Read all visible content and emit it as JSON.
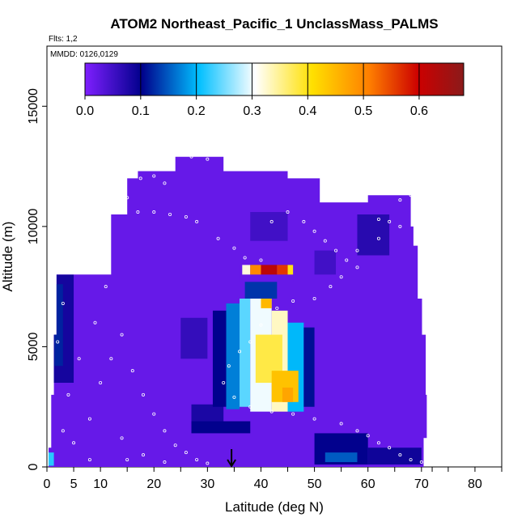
{
  "chart_data": {
    "type": "heatmap",
    "title": "ATOM2 Northeast_Pacific_1 UnclassMass_PALMS",
    "subtitle": "Flts: 1,2",
    "annotation": "MMDD: 0126,0129",
    "xlabel": "Latitude (deg N)",
    "ylabel": "Altitude (m)",
    "xlim": [
      0,
      85
    ],
    "ylim": [
      0,
      17500
    ],
    "x_ticks": [
      0,
      5,
      10,
      20,
      30,
      40,
      50,
      60,
      70,
      80
    ],
    "x_minor_ticks": [
      15,
      25,
      35,
      45,
      55,
      65,
      72,
      75,
      85
    ],
    "y_ticks": [
      0,
      5000,
      10000,
      15000
    ],
    "colorbar": {
      "min": 0.0,
      "max": 0.68,
      "ticks": [
        "0.0",
        "0.1",
        "0.2",
        "0.3",
        "0.4",
        "0.5",
        "0.6"
      ],
      "tick_values": [
        0.0,
        0.1,
        0.2,
        0.3,
        0.4,
        0.5,
        0.6
      ],
      "colors": [
        "#7f1fff",
        "#00008b",
        "#00bfff",
        "#ffffff",
        "#ffe000",
        "#ff7f00",
        "#cc0000",
        "#8b1a1a"
      ],
      "color_positions": [
        0.0,
        0.15,
        0.3,
        0.45,
        0.6,
        0.75,
        0.88,
        1.0
      ]
    },
    "background_value": 0.02,
    "envelope": [
      [
        0.3,
        0
      ],
      [
        0.3,
        800
      ],
      [
        0.8,
        800
      ],
      [
        0.8,
        3000
      ],
      [
        1.3,
        3000
      ],
      [
        1.3,
        5500
      ],
      [
        1.8,
        5500
      ],
      [
        1.8,
        8000
      ],
      [
        12,
        8000
      ],
      [
        12,
        9200
      ],
      [
        12,
        10500
      ],
      [
        15,
        10500
      ],
      [
        15,
        12000
      ],
      [
        17,
        12000
      ],
      [
        17,
        12300
      ],
      [
        24,
        12300
      ],
      [
        24,
        12900
      ],
      [
        33,
        12900
      ],
      [
        33,
        12300
      ],
      [
        45,
        12300
      ],
      [
        45,
        12000
      ],
      [
        51,
        12000
      ],
      [
        51,
        11000
      ],
      [
        60,
        11000
      ],
      [
        60,
        11300
      ],
      [
        68,
        11300
      ],
      [
        68,
        10000
      ],
      [
        68.5,
        10000
      ],
      [
        68.5,
        9200
      ],
      [
        69.3,
        9200
      ],
      [
        69.3,
        7000
      ],
      [
        70.1,
        7000
      ],
      [
        70.1,
        5500
      ],
      [
        70.8,
        5500
      ],
      [
        70.8,
        3000
      ],
      [
        71.0,
        3000
      ],
      [
        71.0,
        1200
      ],
      [
        70.4,
        1200
      ],
      [
        70.4,
        0
      ]
    ],
    "cells": [
      {
        "x": [
          1.2,
          5.0
        ],
        "y": [
          3500,
          8000
        ],
        "v": 0.085
      },
      {
        "x": [
          1.4,
          3.0
        ],
        "y": [
          4200,
          7600
        ],
        "v": 0.12
      },
      {
        "x": [
          0.3,
          1.3
        ],
        "y": [
          50,
          600
        ],
        "v": 0.22
      },
      {
        "x": [
          25,
          30
        ],
        "y": [
          4500,
          6200
        ],
        "v": 0.06
      },
      {
        "x": [
          27,
          33
        ],
        "y": [
          1800,
          2600
        ],
        "v": 0.08
      },
      {
        "x": [
          27,
          38
        ],
        "y": [
          1400,
          1900
        ],
        "v": 0.1
      },
      {
        "x": [
          31,
          33.5
        ],
        "y": [
          2500,
          6500
        ],
        "v": 0.1
      },
      {
        "x": [
          33.5,
          36
        ],
        "y": [
          2400,
          6800
        ],
        "v": 0.17
      },
      {
        "x": [
          36,
          38
        ],
        "y": [
          2500,
          7000
        ],
        "v": 0.24
      },
      {
        "x": [
          38,
          42
        ],
        "y": [
          2300,
          7200
        ],
        "v": 0.3
      },
      {
        "x": [
          42,
          45
        ],
        "y": [
          2300,
          6500
        ],
        "v": 0.33
      },
      {
        "x": [
          45,
          48
        ],
        "y": [
          2300,
          6000
        ],
        "v": 0.2
      },
      {
        "x": [
          48,
          50
        ],
        "y": [
          2500,
          5800
        ],
        "v": 0.11
      },
      {
        "x": [
          39,
          44
        ],
        "y": [
          3500,
          5500
        ],
        "v": 0.38
      },
      {
        "x": [
          42,
          47
        ],
        "y": [
          2700,
          4000
        ],
        "v": 0.44
      },
      {
        "x": [
          44,
          46
        ],
        "y": [
          2700,
          3300
        ],
        "v": 0.47
      },
      {
        "x": [
          40,
          42
        ],
        "y": [
          6600,
          7000
        ],
        "v": 0.45
      },
      {
        "x": [
          37,
          43
        ],
        "y": [
          7000,
          7700
        ],
        "v": 0.13
      },
      {
        "x": [
          36,
          46
        ],
        "y": [
          7700,
          8400
        ],
        "v": 0.02
      },
      {
        "x": [
          36.5,
          38
        ],
        "y": [
          8000,
          8400
        ],
        "v": 0.32
      },
      {
        "x": [
          38,
          40
        ],
        "y": [
          8000,
          8400
        ],
        "v": 0.5
      },
      {
        "x": [
          40,
          43
        ],
        "y": [
          8000,
          8400
        ],
        "v": 0.62
      },
      {
        "x": [
          43,
          45
        ],
        "y": [
          8000,
          8400
        ],
        "v": 0.56
      },
      {
        "x": [
          45,
          46
        ],
        "y": [
          8000,
          8400
        ],
        "v": 0.4
      },
      {
        "x": [
          50,
          60
        ],
        "y": [
          100,
          1400
        ],
        "v": 0.1
      },
      {
        "x": [
          52,
          58
        ],
        "y": [
          200,
          600
        ],
        "v": 0.15
      },
      {
        "x": [
          60,
          70
        ],
        "y": [
          100,
          800
        ],
        "v": 0.09
      },
      {
        "x": [
          58,
          64
        ],
        "y": [
          8800,
          10500
        ],
        "v": 0.07
      },
      {
        "x": [
          38,
          45
        ],
        "y": [
          9400,
          10600
        ],
        "v": 0.05
      },
      {
        "x": [
          50,
          54
        ],
        "y": [
          8000,
          9000
        ],
        "v": 0.05
      }
    ],
    "sample_track": [
      [
        17.5,
        12000
      ],
      [
        20,
        12100
      ],
      [
        22,
        11800
      ],
      [
        27,
        12900
      ],
      [
        30,
        12800
      ],
      [
        13,
        11300
      ],
      [
        15,
        11200
      ],
      [
        17,
        10600
      ],
      [
        20,
        10600
      ],
      [
        23,
        10500
      ],
      [
        26,
        10400
      ],
      [
        28,
        10200
      ],
      [
        32,
        9500
      ],
      [
        35,
        9100
      ],
      [
        37,
        8700
      ],
      [
        40,
        8600
      ],
      [
        42,
        10200
      ],
      [
        45,
        10600
      ],
      [
        48,
        10200
      ],
      [
        50,
        9800
      ],
      [
        52,
        9400
      ],
      [
        54,
        9000
      ],
      [
        56,
        8600
      ],
      [
        58,
        8300
      ],
      [
        62,
        10300
      ],
      [
        64,
        10200
      ],
      [
        66,
        11100
      ],
      [
        68,
        11300
      ],
      [
        66,
        10000
      ],
      [
        62,
        9500
      ],
      [
        58,
        9000
      ],
      [
        55,
        7900
      ],
      [
        53,
        7500
      ],
      [
        50,
        7000
      ],
      [
        46,
        6900
      ],
      [
        43,
        6600
      ],
      [
        40,
        5900
      ],
      [
        38,
        5200
      ],
      [
        36,
        4800
      ],
      [
        34,
        4200
      ],
      [
        33,
        3500
      ],
      [
        35,
        2900
      ],
      [
        38,
        2500
      ],
      [
        42,
        2300
      ],
      [
        46,
        2200
      ],
      [
        50,
        2000
      ],
      [
        55,
        1800
      ],
      [
        58,
        1500
      ],
      [
        60,
        1300
      ],
      [
        62,
        1000
      ],
      [
        64,
        800
      ],
      [
        66,
        500
      ],
      [
        68,
        300
      ],
      [
        70,
        200
      ],
      [
        5,
        1000
      ],
      [
        8,
        2000
      ],
      [
        10,
        3500
      ],
      [
        12,
        4500
      ],
      [
        14,
        5500
      ],
      [
        16,
        4000
      ],
      [
        18,
        3000
      ],
      [
        20,
        2200
      ],
      [
        22,
        1500
      ],
      [
        24,
        900
      ],
      [
        26,
        600
      ],
      [
        28,
        300
      ],
      [
        30,
        150
      ],
      [
        6,
        4500
      ],
      [
        9,
        6000
      ],
      [
        11,
        7500
      ],
      [
        3,
        6800
      ],
      [
        2,
        5200
      ],
      [
        4,
        3000
      ],
      [
        3,
        1500
      ],
      [
        8,
        300
      ],
      [
        14,
        1200
      ],
      [
        18,
        500
      ],
      [
        22,
        200
      ],
      [
        15,
        300
      ]
    ],
    "marker": {
      "x": 34.5,
      "y": 0
    }
  }
}
